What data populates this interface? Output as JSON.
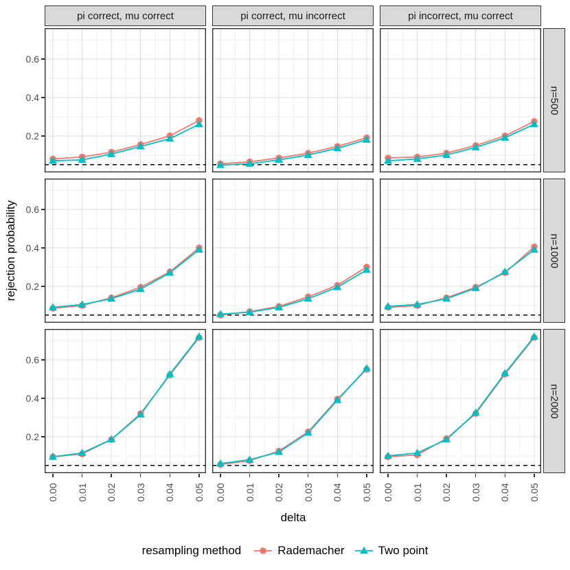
{
  "chart_data": {
    "type": "line",
    "title": "",
    "xlabel": "delta",
    "ylabel": "rejection probability",
    "x": [
      0.0,
      0.01,
      0.02,
      0.03,
      0.04,
      0.05
    ],
    "x_tick_labels": [
      "0.00",
      "0.01",
      "0.02",
      "0.03",
      "0.04",
      "0.05"
    ],
    "y_ticks": [
      0.2,
      0.4,
      0.6
    ],
    "y_tick_labels": [
      "0.2",
      "0.4",
      "0.6"
    ],
    "y_minor_ticks": [
      0.1,
      0.3,
      0.5,
      0.7
    ],
    "x_minor_ticks": [
      0.005,
      0.015,
      0.025,
      0.035,
      0.045
    ],
    "xlim": [
      0.0,
      0.05
    ],
    "ylim": [
      0.01,
      0.76
    ],
    "grid": true,
    "legend_position": "bottom",
    "legend_title": "resampling method",
    "reference_line": {
      "y": 0.05,
      "style": "dashed",
      "color": "#000000"
    },
    "col_facets": [
      "pi correct, mu correct",
      "pi correct, mu incorrect",
      "pi incorrect, mu correct"
    ],
    "row_facets": [
      "n=500",
      "n=1000",
      "n=2000"
    ],
    "series_meta": [
      {
        "name": "Rademacher",
        "color": "#F8766D",
        "marker": "circle"
      },
      {
        "name": "Two point",
        "color": "#00BFC4",
        "marker": "triangle"
      }
    ],
    "facets": [
      {
        "row": "n=500",
        "col": "pi correct, mu correct",
        "series": [
          {
            "name": "Rademacher",
            "values": [
              0.08,
              0.09,
              0.115,
              0.155,
              0.2,
              0.28
            ]
          },
          {
            "name": "Two point",
            "values": [
              0.07,
              0.075,
              0.105,
              0.145,
              0.185,
              0.26
            ]
          }
        ]
      },
      {
        "row": "n=500",
        "col": "pi correct, mu incorrect",
        "series": [
          {
            "name": "Rademacher",
            "values": [
              0.055,
              0.065,
              0.085,
              0.11,
              0.145,
              0.19
            ]
          },
          {
            "name": "Two point",
            "values": [
              0.048,
              0.055,
              0.075,
              0.1,
              0.135,
              0.18
            ]
          }
        ]
      },
      {
        "row": "n=500",
        "col": "pi incorrect, mu correct",
        "series": [
          {
            "name": "Rademacher",
            "values": [
              0.085,
              0.09,
              0.11,
              0.15,
              0.2,
              0.275
            ]
          },
          {
            "name": "Two point",
            "values": [
              0.07,
              0.08,
              0.1,
              0.14,
              0.19,
              0.26
            ]
          }
        ]
      },
      {
        "row": "n=1000",
        "col": "pi correct, mu correct",
        "series": [
          {
            "name": "Rademacher",
            "values": [
              0.085,
              0.1,
              0.14,
              0.195,
              0.275,
              0.4
            ]
          },
          {
            "name": "Two point",
            "values": [
              0.09,
              0.105,
              0.135,
              0.185,
              0.27,
              0.39
            ]
          }
        ]
      },
      {
        "row": "n=1000",
        "col": "pi correct, mu incorrect",
        "series": [
          {
            "name": "Rademacher",
            "values": [
              0.05,
              0.068,
              0.095,
              0.145,
              0.205,
              0.3
            ]
          },
          {
            "name": "Two point",
            "values": [
              0.055,
              0.065,
              0.09,
              0.135,
              0.195,
              0.285
            ]
          }
        ]
      },
      {
        "row": "n=1000",
        "col": "pi incorrect, mu correct",
        "series": [
          {
            "name": "Rademacher",
            "values": [
              0.09,
              0.1,
              0.14,
              0.195,
              0.27,
              0.405
            ]
          },
          {
            "name": "Two point",
            "values": [
              0.095,
              0.105,
              0.135,
              0.19,
              0.275,
              0.39
            ]
          }
        ]
      },
      {
        "row": "n=2000",
        "col": "pi correct, mu correct",
        "series": [
          {
            "name": "Rademacher",
            "values": [
              0.095,
              0.11,
              0.185,
              0.32,
              0.52,
              0.715
            ]
          },
          {
            "name": "Two point",
            "values": [
              0.095,
              0.115,
              0.185,
              0.315,
              0.525,
              0.72
            ]
          }
        ]
      },
      {
        "row": "n=2000",
        "col": "pi correct, mu incorrect",
        "series": [
          {
            "name": "Rademacher",
            "values": [
              0.055,
              0.075,
              0.125,
              0.225,
              0.395,
              0.55
            ]
          },
          {
            "name": "Two point",
            "values": [
              0.06,
              0.08,
              0.12,
              0.22,
              0.39,
              0.555
            ]
          }
        ]
      },
      {
        "row": "n=2000",
        "col": "pi incorrect, mu correct",
        "series": [
          {
            "name": "Rademacher",
            "values": [
              0.095,
              0.105,
              0.19,
              0.32,
              0.525,
              0.715
            ]
          },
          {
            "name": "Two point",
            "values": [
              0.1,
              0.115,
              0.185,
              0.325,
              0.53,
              0.72
            ]
          }
        ]
      }
    ]
  },
  "colors": {
    "strip_bg": "#d9d9d9",
    "panel_border": "#333333",
    "grid_major": "#dcdcdc",
    "grid_minor": "#efefef",
    "tick_text": "#4d4d4d",
    "rademacher": "#F8766D",
    "two_point": "#00BFC4"
  }
}
